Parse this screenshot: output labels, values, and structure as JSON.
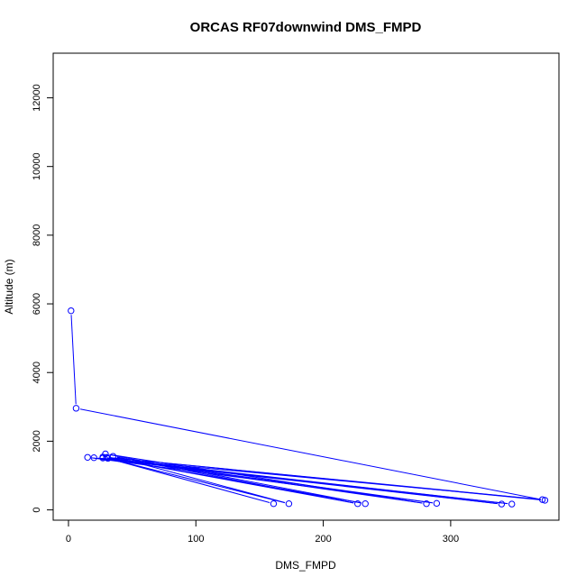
{
  "chart_data": {
    "type": "line",
    "title": "ORCAS RF07downwind DMS_FMPD",
    "xlabel": "DMS_FMPD",
    "ylabel": "Altitude (m)",
    "xlim": [
      -12,
      385
    ],
    "ylim": [
      -300,
      13300
    ],
    "x_ticks": [
      0,
      100,
      200,
      300
    ],
    "y_ticks": [
      0,
      2000,
      4000,
      6000,
      8000,
      10000,
      12000
    ],
    "grid": false,
    "series_color": "#0000ff",
    "points": [
      {
        "x": 2,
        "y": 5800
      },
      {
        "x": 6,
        "y": 2960
      },
      {
        "x": 374,
        "y": 280
      },
      {
        "x": 30,
        "y": 1530
      },
      {
        "x": 372,
        "y": 300
      },
      {
        "x": 20,
        "y": 1520
      },
      {
        "x": 348,
        "y": 170
      },
      {
        "x": 27,
        "y": 1510
      },
      {
        "x": 340,
        "y": 170
      },
      {
        "x": 15,
        "y": 1530
      },
      {
        "x": 289,
        "y": 190
      },
      {
        "x": 30,
        "y": 1520
      },
      {
        "x": 281,
        "y": 180
      },
      {
        "x": 29,
        "y": 1630
      },
      {
        "x": 233,
        "y": 180
      },
      {
        "x": 27,
        "y": 1540
      },
      {
        "x": 227,
        "y": 180
      },
      {
        "x": 35,
        "y": 1560
      },
      {
        "x": 173,
        "y": 180
      },
      {
        "x": 31,
        "y": 1500
      },
      {
        "x": 161,
        "y": 180
      }
    ]
  }
}
